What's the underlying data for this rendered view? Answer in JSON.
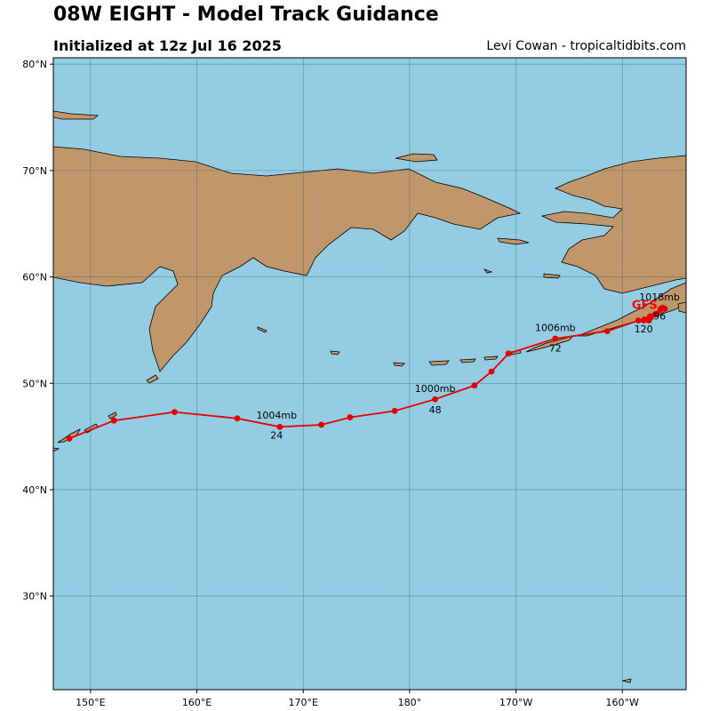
{
  "header": {
    "title": "08W EIGHT - Model Track Guidance",
    "subtitle": "Initialized at 12z Jul 16 2025",
    "credit": "Levi Cowan - tropicaltidbits.com"
  },
  "colors": {
    "ocean": "#94cde3",
    "land": "#c0976b",
    "track": "#e60000",
    "grid": "#3b5b6b"
  },
  "map": {
    "projection": "plate-carree",
    "lon_range": [
      146.5,
      206
    ],
    "lat_range": [
      21.2,
      80.6
    ],
    "lon_ticks": [
      {
        "lon": 150,
        "label": "150°E"
      },
      {
        "lon": 160,
        "label": "160°E"
      },
      {
        "lon": 170,
        "label": "170°E"
      },
      {
        "lon": 180,
        "label": "180°"
      },
      {
        "lon": 190,
        "label": "170°W"
      },
      {
        "lon": 200,
        "label": "160°W"
      }
    ],
    "lat_ticks": [
      {
        "lat": 30,
        "label": "30°N"
      },
      {
        "lat": 40,
        "label": "40°N"
      },
      {
        "lat": 50,
        "label": "50°N"
      },
      {
        "lat": 60,
        "label": "60°N"
      },
      {
        "lat": 70,
        "label": "70°N"
      },
      {
        "lat": 80,
        "label": "80°N"
      }
    ],
    "grid": true
  },
  "chart_data": {
    "type": "scatter",
    "title": "08W EIGHT - Model Track Guidance",
    "series": [
      {
        "name": "GFS",
        "points": [
          {
            "lon": 148.0,
            "lat": 44.8
          },
          {
            "lon": 152.2,
            "lat": 46.5
          },
          {
            "lon": 157.9,
            "lat": 47.3
          },
          {
            "lon": 163.8,
            "lat": 46.7
          },
          {
            "lon": 167.8,
            "lat": 45.9
          },
          {
            "lon": 171.7,
            "lat": 46.1
          },
          {
            "lon": 174.4,
            "lat": 46.8
          },
          {
            "lon": 178.6,
            "lat": 47.4
          },
          {
            "lon": 182.4,
            "lat": 48.5
          },
          {
            "lon": 186.1,
            "lat": 49.8
          },
          {
            "lon": 187.7,
            "lat": 51.1
          },
          {
            "lon": 189.3,
            "lat": 52.8
          },
          {
            "lon": 193.7,
            "lat": 54.2
          },
          {
            "lon": 198.6,
            "lat": 54.9
          },
          {
            "lon": 201.5,
            "lat": 55.9
          },
          {
            "lon": 202.1,
            "lat": 56.0
          },
          {
            "lon": 202.6,
            "lat": 56.3
          },
          {
            "lon": 203.8,
            "lat": 57.1
          },
          {
            "lon": 202.7,
            "lat": 56.2
          },
          {
            "lon": 202.0,
            "lat": 55.9
          },
          {
            "lon": 203.1,
            "lat": 56.5
          },
          {
            "lon": 203.6,
            "lat": 57.0
          },
          {
            "lon": 204.0,
            "lat": 57.0
          },
          {
            "lon": 202.5,
            "lat": 55.9
          }
        ]
      }
    ],
    "annotations": [
      {
        "text": "1004mb",
        "lon": 167.5,
        "lat": 46.7
      },
      {
        "text": "24",
        "lon": 167.5,
        "lat": 44.8
      },
      {
        "text": "1000mb",
        "lon": 182.4,
        "lat": 49.2
      },
      {
        "text": "48",
        "lon": 182.4,
        "lat": 47.2
      },
      {
        "text": "1006mb",
        "lon": 193.7,
        "lat": 54.9
      },
      {
        "text": "72",
        "lon": 193.7,
        "lat": 53.0
      },
      {
        "text": "1018mb",
        "lon": 203.5,
        "lat": 57.8
      },
      {
        "text": "96",
        "lon": 203.5,
        "lat": 56.0
      },
      {
        "text": "120",
        "lon": 202.0,
        "lat": 54.8
      }
    ],
    "model_label": {
      "text": "GFS",
      "lon": 202.1,
      "lat": 57.0
    },
    "xlabel": "",
    "ylabel": ""
  }
}
